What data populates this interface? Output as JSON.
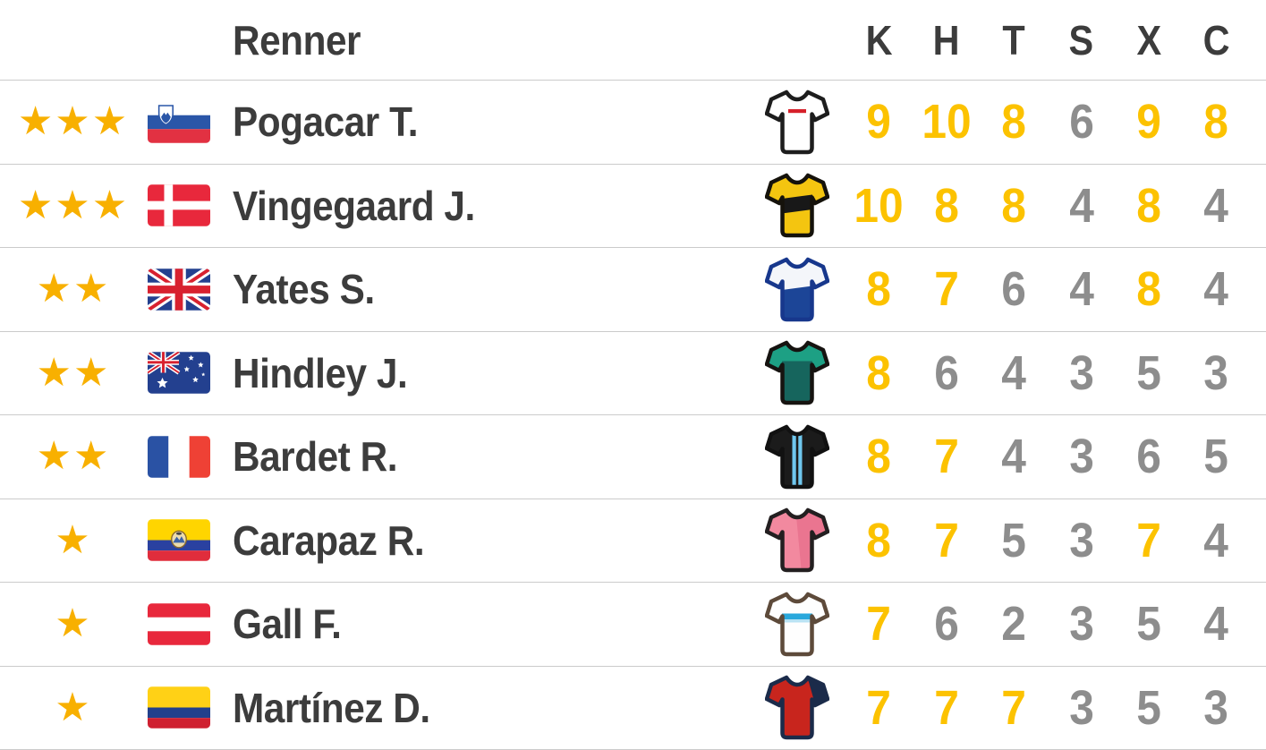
{
  "table": {
    "header": {
      "rider_label": "Renner",
      "stat_columns": [
        "K",
        "H",
        "T",
        "S",
        "X",
        "C"
      ]
    },
    "colors": {
      "highlight": "#fcc200",
      "muted": "#8d8d8d",
      "star": "#f8b000",
      "text": "#3c3c3c",
      "divider": "#cbcbcb"
    },
    "rows": [
      {
        "stars": 3,
        "flag": "si",
        "flag_name": "Slovenia",
        "name": "Pogacar T.",
        "jersey": {
          "name": "jersey-white-red-dash-icon",
          "base": "#ffffff",
          "outline": "#1d1d1d",
          "pattern": "chest-dash",
          "accent": "#d6202a"
        },
        "scores": [
          {
            "v": "9",
            "hl": true
          },
          {
            "v": "10",
            "hl": true
          },
          {
            "v": "8",
            "hl": true
          },
          {
            "v": "6",
            "hl": false
          },
          {
            "v": "9",
            "hl": true
          },
          {
            "v": "8",
            "hl": true
          }
        ]
      },
      {
        "stars": 3,
        "flag": "dk",
        "flag_name": "Denmark",
        "name": "Vingegaard J.",
        "jersey": {
          "name": "jersey-yellow-black-band-icon",
          "base": "#f4c510",
          "outline": "#15120b",
          "pattern": "mid-band",
          "accent": "#181818"
        },
        "scores": [
          {
            "v": "10",
            "hl": true
          },
          {
            "v": "8",
            "hl": true
          },
          {
            "v": "8",
            "hl": true
          },
          {
            "v": "4",
            "hl": false
          },
          {
            "v": "8",
            "hl": true
          },
          {
            "v": "4",
            "hl": false
          }
        ]
      },
      {
        "stars": 2,
        "flag": "gb",
        "flag_name": "United Kingdom",
        "name": "Yates S.",
        "jersey": {
          "name": "jersey-white-blue-bottom-icon",
          "base": "#f4f6fa",
          "outline": "#17378c",
          "pattern": "bottom-half",
          "accent": "#1c4597"
        },
        "scores": [
          {
            "v": "8",
            "hl": true
          },
          {
            "v": "7",
            "hl": true
          },
          {
            "v": "6",
            "hl": false
          },
          {
            "v": "4",
            "hl": false
          },
          {
            "v": "8",
            "hl": true
          },
          {
            "v": "4",
            "hl": false
          }
        ]
      },
      {
        "stars": 2,
        "flag": "au",
        "flag_name": "Australia",
        "name": "Hindley J.",
        "jersey": {
          "name": "jersey-teal-dark-torso-icon",
          "base": "#1da084",
          "outline": "#161310",
          "pattern": "torso",
          "accent": "#16655d"
        },
        "scores": [
          {
            "v": "8",
            "hl": true
          },
          {
            "v": "6",
            "hl": false
          },
          {
            "v": "4",
            "hl": false
          },
          {
            "v": "3",
            "hl": false
          },
          {
            "v": "5",
            "hl": false
          },
          {
            "v": "3",
            "hl": false
          }
        ]
      },
      {
        "stars": 2,
        "flag": "fr",
        "flag_name": "France",
        "name": "Bardet R.",
        "jersey": {
          "name": "jersey-black-blue-stripes-icon",
          "base": "#1b1b1b",
          "outline": "#111111",
          "pattern": "vstripes",
          "accent": "#6fc7ee"
        },
        "scores": [
          {
            "v": "8",
            "hl": true
          },
          {
            "v": "7",
            "hl": true
          },
          {
            "v": "4",
            "hl": false
          },
          {
            "v": "3",
            "hl": false
          },
          {
            "v": "6",
            "hl": false
          },
          {
            "v": "5",
            "hl": false
          }
        ]
      },
      {
        "stars": 1,
        "flag": "ec",
        "flag_name": "Ecuador",
        "name": "Carapaz R.",
        "jersey": {
          "name": "jersey-pink-icon",
          "base": "#f2899f",
          "outline": "#231f20",
          "pattern": "half-shade",
          "accent": "#ea7590"
        },
        "scores": [
          {
            "v": "8",
            "hl": true
          },
          {
            "v": "7",
            "hl": true
          },
          {
            "v": "5",
            "hl": false
          },
          {
            "v": "3",
            "hl": false
          },
          {
            "v": "7",
            "hl": true
          },
          {
            "v": "4",
            "hl": false
          }
        ]
      },
      {
        "stars": 1,
        "flag": "at",
        "flag_name": "Austria",
        "name": "Gall F.",
        "jersey": {
          "name": "jersey-white-cyan-stripe-icon",
          "base": "#fefefe",
          "outline": "#5d4a3a",
          "pattern": "chest-stripe",
          "accent": "#29a8dc",
          "accent2": "#b9e3f4"
        },
        "scores": [
          {
            "v": "7",
            "hl": true
          },
          {
            "v": "6",
            "hl": false
          },
          {
            "v": "2",
            "hl": false
          },
          {
            "v": "3",
            "hl": false
          },
          {
            "v": "5",
            "hl": false
          },
          {
            "v": "4",
            "hl": false
          }
        ]
      },
      {
        "stars": 1,
        "flag": "co",
        "flag_name": "Colombia",
        "name": "Martínez D.",
        "jersey": {
          "name": "jersey-red-navy-shoulder-icon",
          "base": "#c8251d",
          "outline": "#1b2b4a",
          "pattern": "shoulder",
          "accent": "#1b2b4a"
        },
        "scores": [
          {
            "v": "7",
            "hl": true
          },
          {
            "v": "7",
            "hl": true
          },
          {
            "v": "7",
            "hl": true
          },
          {
            "v": "3",
            "hl": false
          },
          {
            "v": "5",
            "hl": false
          },
          {
            "v": "3",
            "hl": false
          }
        ]
      }
    ]
  }
}
